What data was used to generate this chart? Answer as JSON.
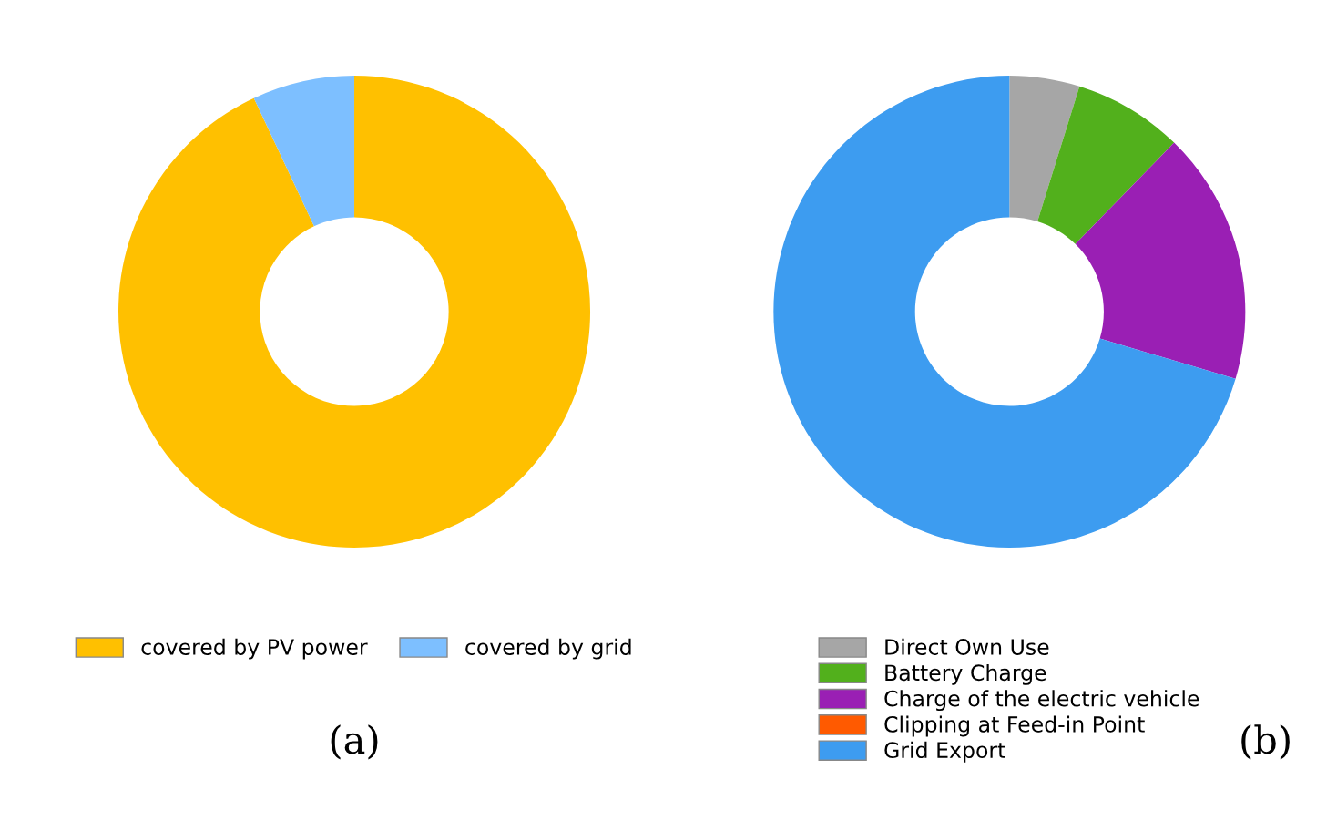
{
  "chart_data": [
    {
      "type": "donut",
      "categories": [
        "covered by PV power",
        "covered by grid"
      ],
      "values": [
        93,
        7
      ],
      "colors": [
        "#ffc000",
        "#7dbfff"
      ],
      "legend": "bottom",
      "annotations": [
        "(a)"
      ]
    },
    {
      "type": "donut",
      "categories": [
        "Direct Own Use",
        "Battery Charge",
        "Charge of the electric vehicle",
        "Clipping at Feed-in Point",
        "Grid Export"
      ],
      "values": [
        4.8,
        7.5,
        17.3,
        0,
        70.4
      ],
      "colors": [
        "#a6a6a6",
        "#52b01c",
        "#9a1fb4",
        "#ff5a00",
        "#3d9cf0"
      ],
      "legend": "bottom",
      "annotations": [
        "(b)"
      ]
    }
  ]
}
